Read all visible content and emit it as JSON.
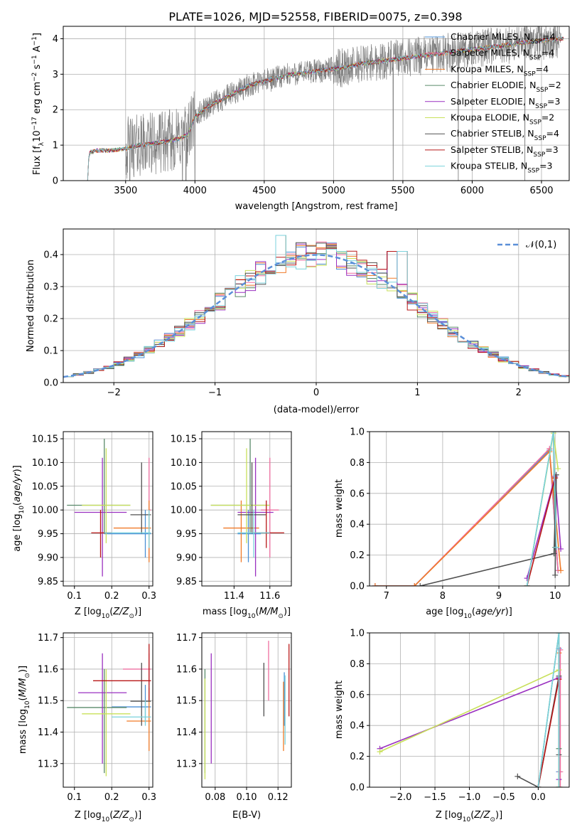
{
  "figure_title": "PLATE=1026, MJD=52558, FIBERID=0075, z=0.398",
  "colors": {
    "Chabrier MILES": "#4a8fd6",
    "Salpeter MILES": "#ef6fa0",
    "Kroupa MILES": "#f07a28",
    "Chabrier ELODIE": "#5a8a6a",
    "Salpeter ELODIE": "#9a30c0",
    "Kroupa ELODIE": "#c8e05a",
    "Chabrier STELIB": "#505050",
    "Salpeter STELIB": "#b81818",
    "Kroupa STELIB": "#7ad2dc",
    "normal": "#5b8fd8",
    "grid": "#b0b0b0"
  },
  "chart_data": [
    {
      "id": "spectrum",
      "type": "line",
      "title": "PLATE=1026, MJD=52558, FIBERID=0075, z=0.398",
      "xlabel": "wavelength [Angstrom, rest frame]",
      "ylabel": "Flux [f_λ 10^-17 erg cm^-2 s^-1 A^-1]",
      "xlim": [
        3050,
        6700
      ],
      "ylim": [
        0,
        4.35
      ],
      "xticks": [
        3500,
        4000,
        4500,
        5000,
        5500,
        6000,
        6500
      ],
      "yticks": [
        0,
        1,
        2,
        3,
        4
      ],
      "legend_position": "top-right",
      "legend": [
        {
          "label": "Chabrier MILES, N_SSP=4",
          "base": "Chabrier MILES, N",
          "sub": "SSP",
          "tail": "=4"
        },
        {
          "label": "Salpeter MILES, N_SSP=4",
          "base": "Salpeter MILES, N",
          "sub": "SSP",
          "tail": "=4"
        },
        {
          "label": "Kroupa MILES, N_SSP=4",
          "base": "Kroupa MILES, N",
          "sub": "SSP",
          "tail": "=4"
        },
        {
          "label": "Chabrier ELODIE, N_SSP=2",
          "base": "Chabrier ELODIE, N",
          "sub": "SSP",
          "tail": "=2"
        },
        {
          "label": "Salpeter ELODIE, N_SSP=3",
          "base": "Salpeter ELODIE, N",
          "sub": "SSP",
          "tail": "=3"
        },
        {
          "label": "Kroupa ELODIE, N_SSP=2",
          "base": "Kroupa ELODIE, N",
          "sub": "SSP",
          "tail": "=2"
        },
        {
          "label": "Chabrier STELIB, N_SSP=4",
          "base": "Chabrier STELIB, N",
          "sub": "SSP",
          "tail": "=4"
        },
        {
          "label": "Salpeter STELIB, N_SSP=3",
          "base": "Salpeter STELIB, N",
          "sub": "SSP",
          "tail": "=3"
        },
        {
          "label": "Kroupa STELIB, N_SSP=3",
          "base": "Kroupa STELIB, N",
          "sub": "SSP",
          "tail": "=3"
        }
      ],
      "model_continuum": {
        "x": [
          3210,
          3240,
          3300,
          3400,
          3500,
          3600,
          3700,
          3800,
          3900,
          3950,
          4000,
          4100,
          4200,
          4300,
          4400,
          4500,
          4600,
          4700,
          4800,
          4900,
          5000,
          5100,
          5200,
          5300,
          5400,
          5500,
          5600,
          5700,
          5800,
          5900,
          6000,
          6100,
          6200,
          6300,
          6400,
          6500,
          6600
        ],
        "y": [
          0,
          0.8,
          0.85,
          0.85,
          0.9,
          1.0,
          1.05,
          1.1,
          1.2,
          1.3,
          1.8,
          2.1,
          2.3,
          2.5,
          2.7,
          2.8,
          2.9,
          3.0,
          3.05,
          3.1,
          3.15,
          3.2,
          3.3,
          3.35,
          3.4,
          3.45,
          3.5,
          3.55,
          3.6,
          3.65,
          3.7,
          3.75,
          3.8,
          3.85,
          3.9,
          3.95,
          4.0
        ]
      },
      "data_spectrum": {
        "start": 3500,
        "end": 6640,
        "deep_absorption_lines": [
          3530,
          3910,
          3935,
          4000,
          5430,
          5900,
          6380
        ]
      }
    },
    {
      "id": "residual_histogram",
      "type": "step",
      "xlabel": "(data-model)/error",
      "ylabel": "Normed distribution",
      "xlim": [
        -2.5,
        2.5
      ],
      "ylim": [
        0,
        0.48
      ],
      "xticks": [
        -2,
        -1,
        0,
        1,
        2
      ],
      "yticks": [
        0.0,
        0.1,
        0.2,
        0.3,
        0.4
      ],
      "reference_curve": {
        "label": "𝒩(0,1)",
        "mu": 0,
        "sigma": 1
      },
      "legend_position": "top-right",
      "bin_width": 0.1,
      "series_order": [
        "Chabrier MILES",
        "Salpeter MILES",
        "Kroupa MILES",
        "Chabrier ELODIE",
        "Salpeter ELODIE",
        "Kroupa ELODIE",
        "Chabrier STELIB",
        "Salpeter STELIB",
        "Kroupa STELIB"
      ],
      "bumps_near_peak": [
        {
          "x": -0.35,
          "y": 0.46
        },
        {
          "x": 0.3,
          "y": 0.41
        },
        {
          "x": 0.65,
          "y": 0.43
        },
        {
          "x": 0.8,
          "y": 0.41
        }
      ]
    },
    {
      "id": "age_vs_Z",
      "type": "errorbar",
      "xlabel": "Z [log10(Z/Z⊙)]",
      "ylabel": "age [log10(age/yr)]",
      "xlim": [
        0.07,
        0.31
      ],
      "ylim": [
        9.84,
        10.165
      ],
      "xticks": [
        0.1,
        0.2,
        0.3
      ],
      "yticks": [
        9.85,
        9.9,
        9.95,
        10.0,
        10.05,
        10.1,
        10.15
      ],
      "points": [
        {
          "series": "Chabrier MILES",
          "x": 0.29,
          "y": 9.95,
          "xerr": [
            0.18,
            0.305
          ],
          "yerr": [
            9.9,
            10.0
          ]
        },
        {
          "series": "Salpeter MILES",
          "x": 0.3,
          "y": 10.0,
          "xerr": [
            0.3,
            0.305
          ],
          "yerr": [
            9.9,
            10.11
          ]
        },
        {
          "series": "Kroupa MILES",
          "x": 0.3,
          "y": 9.962,
          "xerr": [
            0.205,
            0.305
          ],
          "yerr": [
            9.89,
            10.02
          ]
        },
        {
          "series": "Chabrier ELODIE",
          "x": 0.18,
          "y": 10.01,
          "xerr": [
            0.08,
            0.25
          ],
          "yerr": [
            9.95,
            10.15
          ]
        },
        {
          "series": "Salpeter ELODIE",
          "x": 0.175,
          "y": 9.995,
          "xerr": [
            0.1,
            0.24
          ],
          "yerr": [
            9.86,
            10.11
          ]
        },
        {
          "series": "Kroupa ELODIE",
          "x": 0.185,
          "y": 10.01,
          "xerr": [
            0.12,
            0.25
          ],
          "yerr": [
            9.93,
            10.13
          ]
        },
        {
          "series": "Chabrier STELIB",
          "x": 0.28,
          "y": 9.99,
          "xerr": [
            0.25,
            0.305
          ],
          "yerr": [
            9.95,
            10.1
          ]
        },
        {
          "series": "Salpeter STELIB",
          "x": 0.17,
          "y": 9.952,
          "xerr": [
            0.145,
            0.2
          ],
          "yerr": [
            9.9,
            10.0
          ]
        },
        {
          "series": "Kroupa STELIB",
          "x": 0.3,
          "y": 9.952,
          "xerr": [
            0.18,
            0.305
          ],
          "yerr": [
            9.92,
            10.0
          ]
        }
      ]
    },
    {
      "id": "age_vs_mass",
      "type": "errorbar",
      "xlabel": "mass [log10(M/M⊙)]",
      "ylabel": "",
      "xlim": [
        11.22,
        11.72
      ],
      "ylim": [
        9.84,
        10.165
      ],
      "xticks": [
        11.4,
        11.6
      ],
      "yticks": [
        9.85,
        9.9,
        9.95,
        10.0,
        10.05,
        10.1,
        10.15
      ],
      "points": [
        {
          "series": "Chabrier MILES",
          "x": 11.48,
          "y": 9.95,
          "xerr": [
            11.42,
            11.55
          ],
          "yerr": [
            9.89,
            10.0
          ]
        },
        {
          "series": "Salpeter MILES",
          "x": 11.6,
          "y": 10.0,
          "xerr": [
            11.55,
            11.65
          ],
          "yerr": [
            9.9,
            10.11
          ]
        },
        {
          "series": "Kroupa MILES",
          "x": 11.44,
          "y": 9.962,
          "xerr": [
            11.34,
            11.54
          ],
          "yerr": [
            9.89,
            10.02
          ]
        },
        {
          "series": "Chabrier ELODIE",
          "x": 11.49,
          "y": 10.01,
          "xerr": [
            11.27,
            11.6
          ],
          "yerr": [
            9.95,
            10.15
          ]
        },
        {
          "series": "Salpeter ELODIE",
          "x": 11.52,
          "y": 9.995,
          "xerr": [
            11.42,
            11.62
          ],
          "yerr": [
            9.86,
            10.11
          ]
        },
        {
          "series": "Kroupa ELODIE",
          "x": 11.47,
          "y": 10.01,
          "xerr": [
            11.27,
            11.6
          ],
          "yerr": [
            9.93,
            10.13
          ]
        },
        {
          "series": "Chabrier STELIB",
          "x": 11.5,
          "y": 9.99,
          "xerr": [
            11.42,
            11.58
          ],
          "yerr": [
            9.95,
            10.1
          ]
        },
        {
          "series": "Salpeter STELIB",
          "x": 11.58,
          "y": 9.952,
          "xerr": [
            11.5,
            11.68
          ],
          "yerr": [
            9.92,
            10.02
          ]
        },
        {
          "series": "Kroupa STELIB",
          "x": 11.51,
          "y": 9.952,
          "xerr": [
            11.42,
            11.6
          ],
          "yerr": [
            9.9,
            10.0
          ]
        }
      ]
    },
    {
      "id": "weight_vs_age",
      "type": "line",
      "xlabel": "age [log10(age/yr)]",
      "ylabel": "mass weight",
      "xlim": [
        6.7,
        10.25
      ],
      "ylim": [
        0,
        1.0
      ],
      "xticks": [
        7,
        8,
        9,
        10
      ],
      "yticks": [
        0.0,
        0.2,
        0.4,
        0.6,
        0.8,
        1.0
      ],
      "series": [
        {
          "name": "Chabrier MILES",
          "x": [
            6.8,
            7.5,
            9.9,
            10.05
          ],
          "y": [
            0,
            0,
            0.88,
            0.1
          ]
        },
        {
          "name": "Salpeter MILES",
          "x": [
            6.8,
            7.5,
            9.9,
            10.05
          ],
          "y": [
            0,
            0,
            0.89,
            0.1
          ]
        },
        {
          "name": "Kroupa MILES",
          "x": [
            6.8,
            7.5,
            9.9,
            10.1
          ],
          "y": [
            0,
            0,
            0.87,
            0.1
          ]
        },
        {
          "name": "Chabrier ELODIE",
          "x": [
            9.5,
            9.97,
            10.0
          ],
          "y": [
            0,
            1.0,
            0.25
          ]
        },
        {
          "name": "Salpeter ELODIE",
          "x": [
            9.5,
            10.0,
            10.1
          ],
          "y": [
            0.05,
            0.71,
            0.24
          ]
        },
        {
          "name": "Kroupa ELODIE",
          "x": [
            9.5,
            9.97,
            10.05
          ],
          "y": [
            0,
            0.99,
            0.76
          ]
        },
        {
          "name": "Chabrier STELIB",
          "x": [
            7.6,
            9.98,
            10.02,
            10.0
          ],
          "y": [
            0,
            0.21,
            0.72,
            0.07
          ]
        },
        {
          "name": "Salpeter STELIB",
          "x": [
            9.5,
            10.0
          ],
          "y": [
            0.0,
            0.7
          ]
        },
        {
          "name": "Kroupa STELIB",
          "x": [
            9.5,
            9.97,
            10.02
          ],
          "y": [
            0,
            1.0,
            0.25
          ]
        }
      ]
    },
    {
      "id": "mass_vs_Z",
      "type": "errorbar",
      "xlabel": "Z [log10(Z/Z⊙)]",
      "ylabel": "mass [log10(M/M⊙)]",
      "xlim": [
        0.07,
        0.31
      ],
      "ylim": [
        11.225,
        11.715
      ],
      "xticks": [
        0.1,
        0.2,
        0.3
      ],
      "yticks": [
        11.3,
        11.4,
        11.5,
        11.6,
        11.7
      ],
      "points": [
        {
          "series": "Chabrier MILES",
          "x": 0.29,
          "y": 11.48,
          "xerr": [
            0.2,
            0.305
          ],
          "yerr": [
            11.43,
            11.55
          ]
        },
        {
          "series": "Salpeter MILES",
          "x": 0.3,
          "y": 11.6,
          "xerr": [
            0.23,
            0.305
          ],
          "yerr": [
            11.55,
            11.65
          ]
        },
        {
          "series": "Kroupa MILES",
          "x": 0.3,
          "y": 11.435,
          "xerr": [
            0.24,
            0.305
          ],
          "yerr": [
            11.34,
            11.54
          ]
        },
        {
          "series": "Chabrier ELODIE",
          "x": 0.18,
          "y": 11.478,
          "xerr": [
            0.08,
            0.24
          ],
          "yerr": [
            11.27,
            11.6
          ]
        },
        {
          "series": "Salpeter ELODIE",
          "x": 0.175,
          "y": 11.525,
          "xerr": [
            0.11,
            0.24
          ],
          "yerr": [
            11.3,
            11.65
          ]
        },
        {
          "series": "Kroupa ELODIE",
          "x": 0.185,
          "y": 11.458,
          "xerr": [
            0.12,
            0.25
          ],
          "yerr": [
            11.26,
            11.6
          ]
        },
        {
          "series": "Chabrier STELIB",
          "x": 0.28,
          "y": 11.498,
          "xerr": [
            0.25,
            0.305
          ],
          "yerr": [
            11.42,
            11.62
          ]
        },
        {
          "series": "Salpeter STELIB",
          "x": 0.3,
          "y": 11.563,
          "xerr": [
            0.15,
            0.305
          ],
          "yerr": [
            11.5,
            11.68
          ]
        },
        {
          "series": "Kroupa STELIB",
          "x": 0.29,
          "y": 11.448,
          "xerr": [
            0.2,
            0.305
          ],
          "yerr": [
            11.42,
            11.5
          ]
        }
      ]
    },
    {
      "id": "mass_vs_ebv",
      "type": "errorbar",
      "xlabel": "E(B-V)",
      "ylabel": "",
      "xlim": [
        0.0715,
        0.1285
      ],
      "ylim": [
        11.225,
        11.715
      ],
      "xticks": [
        0.08,
        0.1,
        0.12
      ],
      "yticks": [
        11.3,
        11.4,
        11.5,
        11.6,
        11.7
      ],
      "points": [
        {
          "series": "Chabrier MILES",
          "x": 0.124,
          "y": 11.48,
          "yerr": [
            11.42,
            11.59
          ]
        },
        {
          "series": "Salpeter MILES",
          "x": 0.114,
          "y": 11.6,
          "yerr": [
            11.5,
            11.69
          ]
        },
        {
          "series": "Kroupa MILES",
          "x": 0.1235,
          "y": 11.435,
          "yerr": [
            11.34,
            11.56
          ]
        },
        {
          "series": "Chabrier ELODIE",
          "x": 0.0735,
          "y": 11.478,
          "yerr": [
            11.27,
            11.6
          ]
        },
        {
          "series": "Salpeter ELODIE",
          "x": 0.0775,
          "y": 11.525,
          "yerr": [
            11.3,
            11.65
          ]
        },
        {
          "series": "Kroupa ELODIE",
          "x": 0.0735,
          "y": 11.458,
          "yerr": [
            11.25,
            11.57
          ]
        },
        {
          "series": "Chabrier STELIB",
          "x": 0.111,
          "y": 11.498,
          "yerr": [
            11.45,
            11.62
          ]
        },
        {
          "series": "Salpeter STELIB",
          "x": 0.127,
          "y": 11.563,
          "yerr": [
            11.45,
            11.68
          ]
        },
        {
          "series": "Kroupa STELIB",
          "x": 0.1245,
          "y": 11.448,
          "yerr": [
            11.36,
            11.58
          ]
        }
      ]
    },
    {
      "id": "weight_vs_Z",
      "type": "line",
      "xlabel": "Z [log10(Z/Z⊙)]",
      "ylabel": "mass weight",
      "xlim": [
        -2.45,
        0.45
      ],
      "ylim": [
        0,
        1.0
      ],
      "xticks": [
        -2.0,
        -1.5,
        -1.0,
        -0.5,
        0.0
      ],
      "yticks": [
        0.0,
        0.2,
        0.4,
        0.6,
        0.8,
        1.0
      ],
      "series": [
        {
          "name": "Chabrier MILES",
          "x": [
            0.3,
            0.3,
            0.3
          ],
          "y": [
            0,
            0.9,
            0.1
          ]
        },
        {
          "name": "Salpeter MILES",
          "x": [
            0.32,
            0.32,
            0.32
          ],
          "y": [
            0,
            0.89,
            0.1
          ]
        },
        {
          "name": "Kroupa MILES",
          "x": [
            0.3,
            0.3
          ],
          "y": [
            0.0,
            0.87
          ]
        },
        {
          "name": "Chabrier ELODIE",
          "x": [
            0.0,
            0.3,
            0.3
          ],
          "y": [
            0,
            1.0,
            0.25
          ]
        },
        {
          "name": "Salpeter ELODIE",
          "x": [
            -2.3,
            0.3,
            0.3
          ],
          "y": [
            0.25,
            0.71,
            0.05
          ]
        },
        {
          "name": "Kroupa ELODIE",
          "x": [
            -2.3,
            0.3,
            0.3
          ],
          "y": [
            0.23,
            0.76,
            0.0
          ]
        },
        {
          "name": "Chabrier STELIB",
          "x": [
            -0.3,
            0.0,
            0.3,
            0.3
          ],
          "y": [
            0.07,
            0.0,
            0.72,
            0.21
          ]
        },
        {
          "name": "Salpeter STELIB",
          "x": [
            0.0,
            0.3
          ],
          "y": [
            0.0,
            0.7
          ]
        },
        {
          "name": "Kroupa STELIB",
          "x": [
            0.0,
            0.3,
            0.3
          ],
          "y": [
            0,
            1.0,
            0.0
          ]
        }
      ]
    }
  ]
}
